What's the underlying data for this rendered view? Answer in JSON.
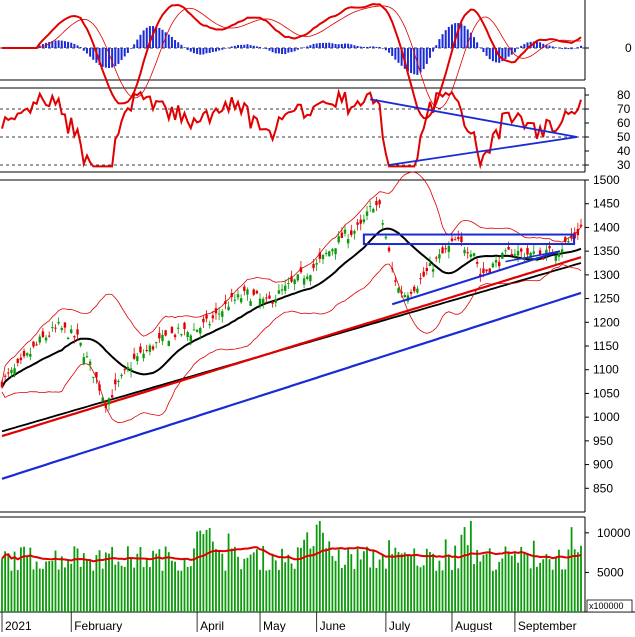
{
  "chart_data": [
    {
      "panel": "macd",
      "type": "line",
      "y_ticks": [
        0
      ],
      "zero_label": "0",
      "series": [],
      "histogram_positive_color": "#1a2bd6",
      "histogram_negative_color": "#1a2bd6",
      "macd_color": "#e00000",
      "signal_color": "#e00000"
    },
    {
      "panel": "rsi",
      "type": "line",
      "ylim": [
        25,
        85
      ],
      "y_ticks": [
        80,
        70,
        60,
        50,
        40,
        30
      ],
      "reference_lines": [
        70,
        50,
        30
      ],
      "line_color": "#e00000",
      "trendline_color": "#1a2bd6"
    },
    {
      "panel": "price",
      "type": "candlestick",
      "ylim": [
        800,
        1500
      ],
      "y_ticks": [
        1500,
        1450,
        1400,
        1350,
        1300,
        1250,
        1200,
        1150,
        1100,
        1050,
        1000,
        950,
        900,
        850
      ],
      "up_color": "#0a9a0a",
      "down_color": "#e00000",
      "resistance_zone": [
        1365,
        1385
      ],
      "resistance_color": "#1a2bd6",
      "ma_colors": {
        "ma20": "#000000",
        "ma50": "#e00000",
        "ma100": "#000000",
        "ma200": "#1a2bd6"
      },
      "bollinger_color": "#e00000"
    },
    {
      "panel": "volume",
      "type": "bar",
      "ylim": [
        0,
        12000
      ],
      "y_ticks": [
        10000,
        5000
      ],
      "unit_label": "x100000",
      "bar_color": "#0a9a0a",
      "ma_color": "#e00000"
    }
  ],
  "x_axis": {
    "labels": [
      "2021",
      "February",
      "April",
      "May",
      "June",
      "July",
      "August",
      "September"
    ]
  }
}
